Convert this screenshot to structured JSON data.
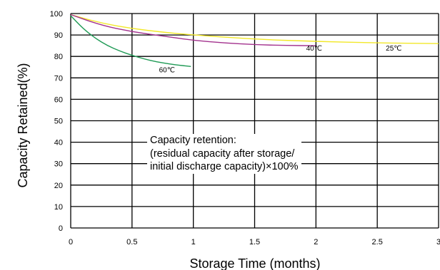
{
  "chart_data": {
    "type": "line",
    "xlabel": "Storage Time (months)",
    "ylabel": "Capacity Retained(%)",
    "xlim": [
      0,
      3
    ],
    "ylim": [
      0,
      100
    ],
    "x_ticks": [
      "0",
      "0.5",
      "1",
      "1.5",
      "2",
      "2.5",
      "3"
    ],
    "y_ticks": [
      "0",
      "10",
      "20",
      "30",
      "40",
      "50",
      "60",
      "70",
      "80",
      "90",
      "100"
    ],
    "grid": true,
    "series": [
      {
        "name": "25℃",
        "color": "#f2e829",
        "x": [
          0,
          0.25,
          0.5,
          0.75,
          1,
          1.5,
          2,
          2.5,
          3
        ],
        "y": [
          99.5,
          95.5,
          93,
          91.3,
          90,
          88,
          87,
          86.3,
          86
        ]
      },
      {
        "name": "40℃",
        "color": "#a3328e",
        "x": [
          0,
          0.25,
          0.5,
          0.75,
          1,
          1.25,
          1.5,
          1.75,
          2
        ],
        "y": [
          99.5,
          94.5,
          91.5,
          89.5,
          87.5,
          86.3,
          85.5,
          85.1,
          85
        ]
      },
      {
        "name": "60℃",
        "color": "#1f9a55",
        "x": [
          0,
          0.1,
          0.2,
          0.3,
          0.4,
          0.5,
          0.6,
          0.7,
          0.8,
          0.9,
          0.98
        ],
        "y": [
          99,
          93,
          88.5,
          85,
          82.5,
          80.5,
          78.8,
          77.5,
          76.5,
          75.8,
          75.3
        ]
      }
    ],
    "annotation": [
      "Capacity retention:",
      "(residual capacity after storage/",
      "initial discharge capacity)×100%"
    ]
  }
}
